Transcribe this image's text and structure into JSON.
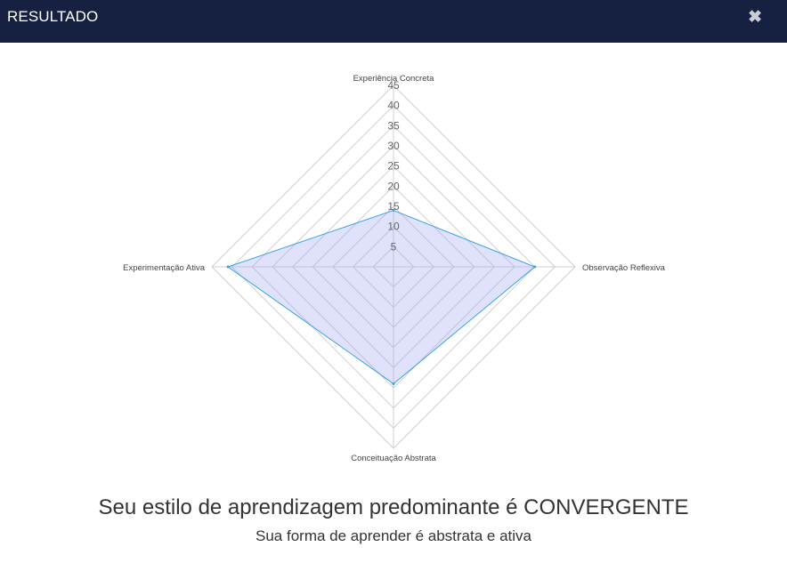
{
  "header": {
    "title": "RESULTADO",
    "close_icon": "close-icon",
    "close_symbol": "✖",
    "background": "#162040"
  },
  "chart_data": {
    "type": "radar",
    "axes": [
      "Experiência Concreta",
      "Observação Reflexiva",
      "Conceituação Abstrata",
      "Experimentação Ativa"
    ],
    "ticks": [
      5,
      10,
      15,
      20,
      25,
      30,
      35,
      40,
      45
    ],
    "range": [
      0,
      45
    ],
    "series": [
      {
        "values": [
          14,
          35,
          29,
          41
        ],
        "fill": "rgba(160,165,245,0.32)",
        "stroke": "#36a2eb"
      }
    ],
    "grid": true
  },
  "result": {
    "title": "Seu estilo de aprendizagem predominante é CONVERGENTE",
    "subtitle": "Sua forma de aprender é abstrata e ativa"
  }
}
